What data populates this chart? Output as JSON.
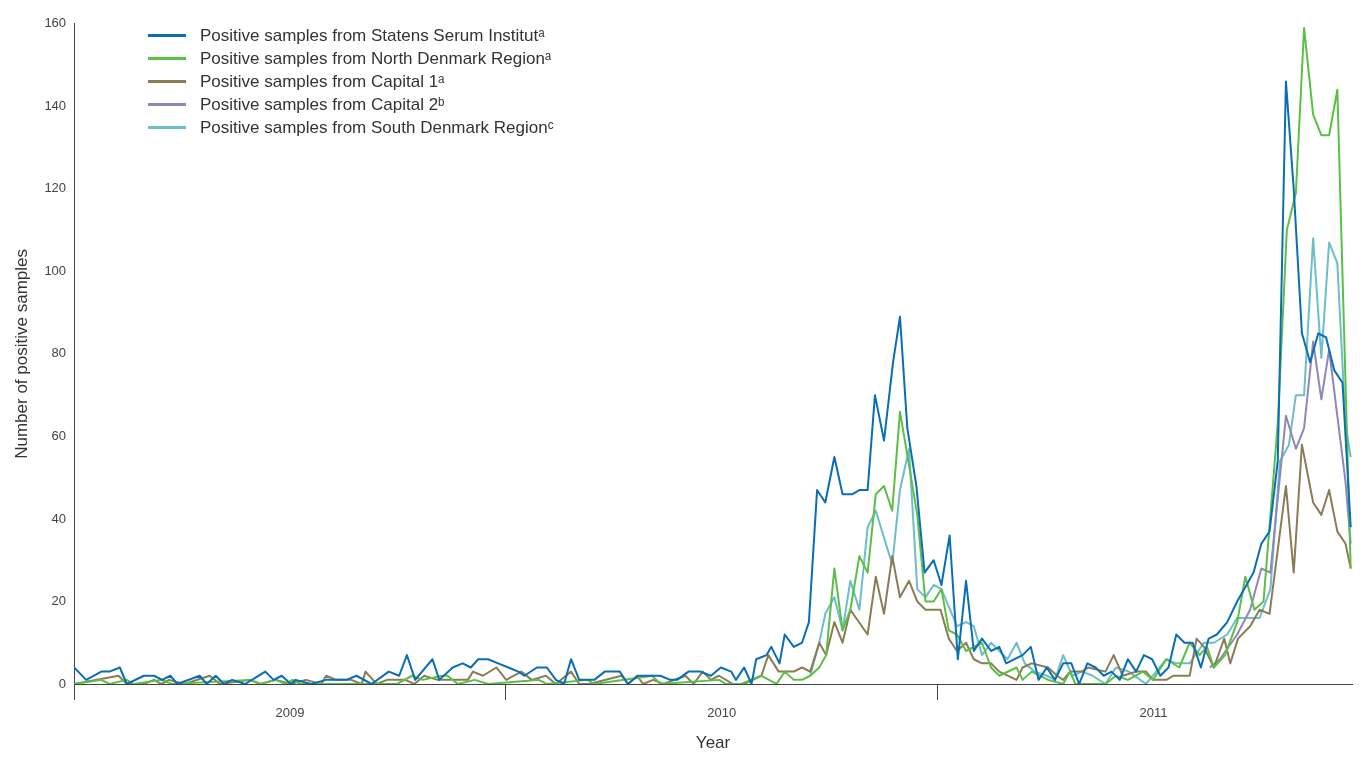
{
  "chart_data": {
    "type": "line",
    "xlabel": "Year",
    "ylabel": "Number of positive samples",
    "xlim": [
      2009,
      2011.96
    ],
    "xticks": [
      {
        "value": 2009,
        "label": null
      },
      {
        "value": 2009.5,
        "label": "2009"
      },
      {
        "value": 2010,
        "label": null
      },
      {
        "value": 2010.5,
        "label": "2010"
      },
      {
        "value": 2011,
        "label": null
      },
      {
        "value": 2011.5,
        "label": "2011"
      }
    ],
    "ylim": [
      0,
      160
    ],
    "yticks": [
      0,
      20,
      40,
      60,
      80,
      100,
      120,
      140,
      160
    ],
    "grid": false,
    "legend": "top left",
    "series": [
      {
        "name": "Positive samples from Statens Serum Institutᵃ",
        "color": "#0a6eb4",
        "x": [
          2009,
          2009.028,
          2009.063,
          2009.082,
          2009.106,
          2009.122,
          2009.162,
          2009.185,
          2009.204,
          2009.223,
          2009.239,
          2009.291,
          2009.307,
          2009.328,
          2009.347,
          2009.366,
          2009.396,
          2009.443,
          2009.462,
          2009.481,
          2009.502,
          2009.513,
          2009.549,
          2009.584,
          2009.631,
          2009.654,
          2009.689,
          2009.729,
          2009.753,
          2009.771,
          2009.79,
          2009.83,
          2009.846,
          2009.877,
          2009.9,
          2009.919,
          2009.936,
          2009.959,
          2009.982,
          2010.006,
          2010.029,
          2010.043,
          2010.072,
          2010.095,
          2010.116,
          2010.135,
          2010.151,
          2010.17,
          2010.205,
          2010.229,
          2010.264,
          2010.283,
          2010.306,
          2010.334,
          2010.358,
          2010.381,
          2010.397,
          2010.423,
          2010.451,
          2010.475,
          2010.498,
          2010.522,
          2010.533,
          2010.552,
          2010.569,
          2010.58,
          2010.604,
          2010.615,
          2010.634,
          2010.646,
          2010.667,
          2010.686,
          2010.702,
          2010.721,
          2010.74,
          2010.761,
          2010.78,
          2010.803,
          2010.819,
          2010.838,
          2010.855,
          2010.876,
          2010.897,
          2010.913,
          2010.93,
          2010.951,
          2010.97,
          2010.991,
          2011.009,
          2011.028,
          2011.047,
          2011.066,
          2011.084,
          2011.103,
          2011.124,
          2011.143,
          2011.159,
          2011.197,
          2011.216,
          2011.234,
          2011.253,
          2011.272,
          2011.291,
          2011.31,
          2011.328,
          2011.347,
          2011.366,
          2011.385,
          2011.403,
          2011.422,
          2011.441,
          2011.46,
          2011.478,
          2011.497,
          2011.516,
          2011.535,
          2011.553,
          2011.572,
          2011.591,
          2011.61,
          2011.628,
          2011.647,
          2011.671,
          2011.694,
          2011.732,
          2011.75,
          2011.769,
          2011.788,
          2011.807,
          2011.825,
          2011.844,
          2011.863,
          2011.882,
          2011.9,
          2011.919,
          2011.938,
          2011.957
        ],
        "values": [
          4,
          1,
          3,
          3,
          4,
          0,
          2,
          2,
          1,
          2,
          0,
          2,
          0,
          2,
          0,
          1,
          0,
          3,
          1,
          2,
          0,
          1,
          0,
          1,
          1,
          2,
          0,
          3,
          2,
          7,
          1,
          6,
          1,
          4,
          5,
          4,
          6,
          6,
          5,
          4,
          3,
          2,
          4,
          4,
          1,
          0,
          6,
          1,
          1,
          3,
          3,
          0,
          2,
          2,
          2,
          1,
          1,
          3,
          3,
          2,
          4,
          3,
          1,
          4,
          0,
          6,
          7,
          9,
          5,
          12,
          9,
          10,
          15,
          47,
          44,
          55,
          46,
          46,
          47,
          47,
          70,
          59,
          78,
          89,
          62,
          48,
          27,
          30,
          24,
          36,
          6,
          25,
          8,
          11,
          8,
          9,
          5,
          7,
          9,
          1,
          4,
          1,
          5,
          5,
          0,
          5,
          4,
          2,
          3,
          1,
          6,
          3,
          7,
          6,
          2,
          4,
          12,
          10,
          10,
          4,
          11,
          12,
          15,
          20,
          27,
          34,
          37,
          54,
          146,
          120,
          85,
          78,
          85,
          84,
          76,
          73,
          38
        ]
      },
      {
        "name": "Positive samples from North Denmark Regionᵃ",
        "color": "#5bbf46",
        "x": [
          2009,
          2009.063,
          2009.082,
          2009.122,
          2009.138,
          2009.202,
          2009.227,
          2009.408,
          2009.431,
          2009.467,
          2009.49,
          2009.506,
          2009.525,
          2009.748,
          2009.783,
          2009.807,
          2009.853,
          2009.865,
          2009.889,
          2009.928,
          2009.959,
          2010.076,
          2010.095,
          2010.189,
          2010.205,
          2010.339,
          2010.358,
          2010.494,
          2010.51,
          2010.545,
          2010.592,
          2010.627,
          2010.646,
          2010.667,
          2010.686,
          2010.705,
          2010.726,
          2010.742,
          2010.761,
          2010.78,
          2010.798,
          2010.819,
          2010.838,
          2010.857,
          2010.876,
          2010.895,
          2010.913,
          2010.934,
          2010.953,
          2010.972,
          2010.991,
          2011.009,
          2011.026,
          2011.045,
          2011.066,
          2011.103,
          2011.124,
          2011.143,
          2011.183,
          2011.197,
          2011.218,
          2011.256,
          2011.291,
          2011.307,
          2011.319,
          2011.389,
          2011.413,
          2011.441,
          2011.476,
          2011.499,
          2011.53,
          2011.56,
          2011.584,
          2011.607,
          2011.624,
          2011.64,
          2011.666,
          2011.694,
          2011.713,
          2011.734,
          2011.755,
          2011.788,
          2011.809,
          2011.83,
          2011.849,
          2011.87,
          2011.889,
          2011.907,
          2011.926,
          2011.957
        ],
        "values": [
          0,
          1,
          0,
          1,
          0,
          1,
          0,
          1,
          0,
          1,
          0,
          1,
          0,
          0,
          2,
          1,
          2,
          2,
          0,
          1,
          0,
          1,
          0,
          1,
          0,
          2,
          0,
          1,
          0,
          0,
          2,
          0,
          3,
          1,
          1,
          2,
          4,
          7,
          28,
          13,
          18,
          31,
          27,
          46,
          48,
          42,
          66,
          53,
          41,
          20,
          20,
          23,
          13,
          12,
          8,
          10,
          4,
          2,
          4,
          1,
          3,
          1,
          0,
          3,
          0,
          0,
          2,
          1,
          3,
          1,
          6,
          4,
          10,
          7,
          9,
          4,
          7,
          15,
          26,
          18,
          20,
          63,
          110,
          119,
          159,
          138,
          133,
          133,
          144,
          28
        ]
      },
      {
        "name": "Positive samples from Capital 1ᵃ",
        "color": "#8c7c56",
        "x": [
          2009,
          2009.103,
          2009.122,
          2009.162,
          2009.185,
          2009.202,
          2009.22,
          2009.256,
          2009.314,
          2009.338,
          2009.408,
          2009.431,
          2009.467,
          2009.502,
          2009.537,
          2009.572,
          2009.584,
          2009.607,
          2009.642,
          2009.666,
          2009.675,
          2009.701,
          2009.725,
          2009.767,
          2009.788,
          2009.811,
          2009.842,
          2009.912,
          2009.924,
          2009.947,
          2009.978,
          2010.001,
          2010.036,
          2010.06,
          2010.093,
          2010.116,
          2010.151,
          2010.17,
          2010.193,
          2010.268,
          2010.283,
          2010.304,
          2010.318,
          2010.341,
          2010.365,
          2010.416,
          2010.435,
          2010.456,
          2010.475,
          2010.494,
          2010.526,
          2010.552,
          2010.592,
          2010.608,
          2010.632,
          2010.667,
          2010.686,
          2010.705,
          2010.726,
          2010.742,
          2010.761,
          2010.78,
          2010.798,
          2010.838,
          2010.857,
          2010.876,
          2010.895,
          2010.913,
          2010.934,
          2010.953,
          2010.972,
          2011.007,
          2011.026,
          2011.045,
          2011.066,
          2011.084,
          2011.103,
          2011.124,
          2011.143,
          2011.183,
          2011.197,
          2011.218,
          2011.256,
          2011.277,
          2011.291,
          2011.307,
          2011.335,
          2011.349,
          2011.389,
          2011.408,
          2011.429,
          2011.46,
          2011.483,
          2011.499,
          2011.53,
          2011.546,
          2011.584,
          2011.6,
          2011.617,
          2011.64,
          2011.664,
          2011.678,
          2011.696,
          2011.724,
          2011.746,
          2011.769,
          2011.807,
          2011.825,
          2011.844,
          2011.87,
          2011.889,
          2011.907,
          2011.926,
          2011.945,
          2011.957
        ],
        "values": [
          0,
          2,
          0,
          0,
          1,
          0,
          1,
          0,
          2,
          0,
          1,
          0,
          1,
          0,
          1,
          0,
          2,
          1,
          1,
          0,
          3,
          0,
          1,
          1,
          0,
          2,
          1,
          1,
          3,
          2,
          4,
          1,
          3,
          1,
          2,
          0,
          3,
          0,
          0,
          2,
          0,
          2,
          0,
          1,
          0,
          2,
          0,
          3,
          1,
          2,
          0,
          0,
          2,
          7,
          3,
          3,
          4,
          3,
          10,
          7,
          15,
          10,
          18,
          12,
          26,
          17,
          31,
          21,
          25,
          20,
          18,
          18,
          11,
          8,
          10,
          6,
          5,
          5,
          3,
          1,
          4,
          5,
          4,
          2,
          1,
          3,
          3,
          4,
          3,
          7,
          2,
          3,
          3,
          1,
          1,
          2,
          2,
          11,
          9,
          4,
          11,
          5,
          11,
          14,
          18,
          17,
          48,
          27,
          58,
          44,
          41,
          47,
          37,
          34,
          28
        ]
      },
      {
        "name": "Positive samples from Capital 2ᵇ",
        "color": "#8e87b8",
        "x": [
          2011.631,
          2011.654,
          2011.694,
          2011.724,
          2011.75,
          2011.771,
          2011.807,
          2011.83,
          2011.849,
          2011.87,
          2011.889,
          2011.907,
          2011.945,
          2011.957
        ],
        "values": [
          4,
          6,
          12,
          18,
          28,
          27,
          65,
          57,
          62,
          83,
          69,
          81,
          49,
          34
        ]
      },
      {
        "name": "Positive samples from South Denmark Regionᶜ",
        "color": "#6cbfc6",
        "x": [
          2010.705,
          2010.726,
          2010.74,
          2010.761,
          2010.78,
          2010.798,
          2010.819,
          2010.838,
          2010.857,
          2010.895,
          2010.913,
          2010.934,
          2010.953,
          2010.972,
          2010.991,
          2011.009,
          2011.045,
          2011.066,
          2011.084,
          2011.103,
          2011.124,
          2011.143,
          2011.162,
          2011.183,
          2011.202,
          2011.225,
          2011.253,
          2011.272,
          2011.291,
          2011.312,
          2011.335,
          2011.359,
          2011.389,
          2011.413,
          2011.443,
          2011.483,
          2011.506,
          2011.53,
          2011.553,
          2011.584,
          2011.617,
          2011.64,
          2011.671,
          2011.694,
          2011.724,
          2011.746,
          2011.771,
          2011.793,
          2011.814,
          2011.83,
          2011.849,
          2011.87,
          2011.889,
          2011.907,
          2011.926,
          2011.945,
          2011.957
        ],
        "values": [
          2,
          10,
          17,
          21,
          13,
          25,
          18,
          38,
          42,
          29,
          47,
          57,
          23,
          21,
          24,
          23,
          14,
          15,
          14,
          7,
          10,
          8,
          6,
          10,
          5,
          3,
          2,
          1,
          7,
          2,
          3,
          2,
          0,
          4,
          3,
          0,
          3,
          6,
          5,
          5,
          10,
          10,
          12,
          16,
          16,
          16,
          23,
          54,
          58,
          70,
          70,
          108,
          79,
          107,
          102,
          63,
          55
        ]
      }
    ]
  }
}
